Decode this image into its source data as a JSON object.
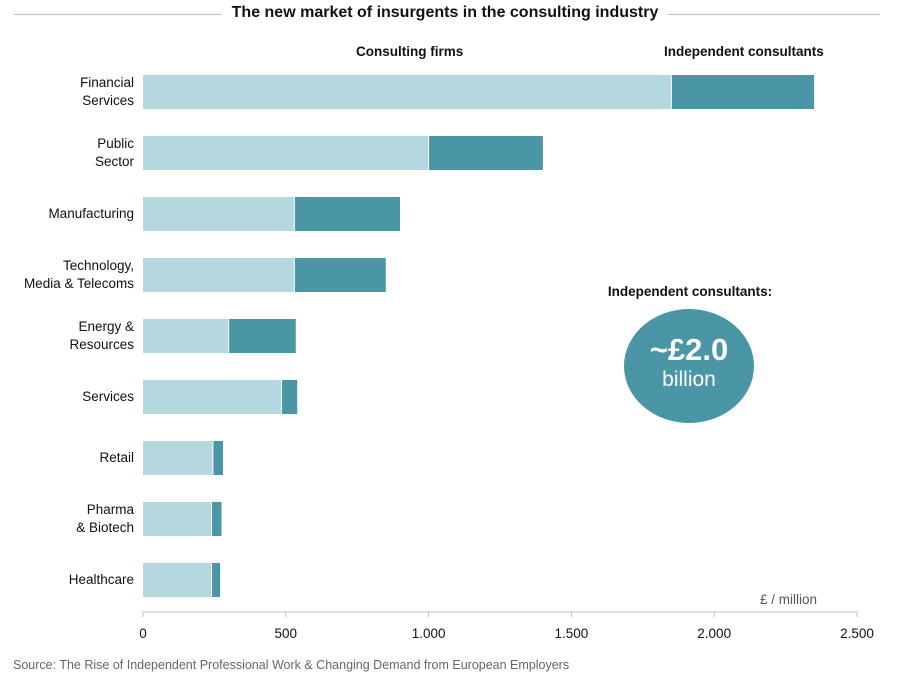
{
  "chart_data": {
    "type": "bar",
    "orientation": "horizontal",
    "stacked": true,
    "title": "The new market of insurgents in the consulting industry",
    "categories": [
      "Financial\nServices",
      "Public\nSector",
      "Manufacturing",
      "Technology,\nMedia & Telecoms",
      "Energy &\nResources",
      "Services",
      "Retail",
      "Pharma\n& Biotech",
      "Healthcare"
    ],
    "series": [
      {
        "name": "Consulting firms",
        "color": "#b5d8df",
        "values": [
          1850,
          1000,
          530,
          530,
          300,
          485,
          245,
          240,
          240
        ]
      },
      {
        "name": "Independent consultants",
        "color": "#4a96a6",
        "values": [
          500,
          400,
          370,
          320,
          235,
          55,
          35,
          35,
          30
        ]
      }
    ],
    "xlim": [
      0,
      2500
    ],
    "xticks": [
      "0",
      "500",
      "1.000",
      "1.500",
      "2.000",
      "2.500"
    ],
    "xtick_values": [
      0,
      500,
      1000,
      1500,
      2000,
      2500
    ],
    "unit_label": "£ / million",
    "legend_position": "top",
    "grid": false
  },
  "callout": {
    "title": "Independent consultants:",
    "value": "~£2.0",
    "unit": "billion",
    "color": "#4a96a6"
  },
  "source": "Source: The Rise of Independent Professional Work & Changing Demand from European Employers"
}
